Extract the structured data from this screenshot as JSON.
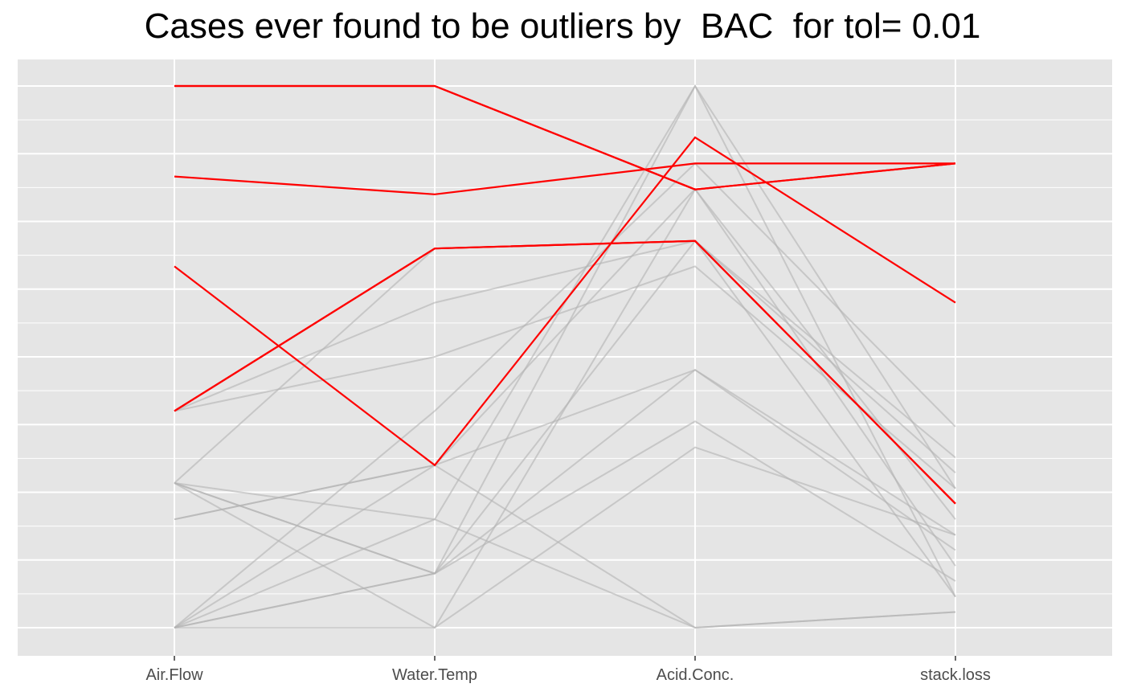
{
  "chart_data": {
    "type": "line",
    "title": "Cases ever found to be outliers by  BAC  for tol= 0.01",
    "xlabel": "",
    "ylabel": "",
    "categories": [
      "Air.Flow",
      "Water.Temp",
      "Acid.Conc.",
      "stack.loss"
    ],
    "ylim": [
      0,
      1
    ],
    "grid": true,
    "legend": "none",
    "colors": {
      "outlier": "#ff0000",
      "regular": "#b3b3b3",
      "panel_background": "#e5e5e5",
      "grid": "#ffffff",
      "tick_text": "#4d4d4d"
    },
    "series": [
      {
        "outlier": true,
        "values": [
          1.0,
          1.0,
          0.809,
          0.857
        ]
      },
      {
        "outlier": true,
        "values": [
          1.0,
          1.0,
          0.809,
          0.857
        ]
      },
      {
        "outlier": true,
        "values": [
          0.833,
          0.8,
          0.857,
          0.857
        ]
      },
      {
        "outlier": true,
        "values": [
          0.667,
          0.3,
          0.905,
          0.6
        ]
      },
      {
        "outlier": true,
        "values": [
          0.4,
          0.7,
          0.714,
          0.229
        ]
      },
      {
        "outlier": false,
        "values": [
          0.4,
          0.7,
          0.714,
          0.229
        ]
      },
      {
        "outlier": true,
        "values": [
          0.4,
          0.7,
          0.714,
          0.229
        ]
      },
      {
        "outlier": false,
        "values": [
          0.4,
          0.6,
          0.714,
          0.286
        ]
      },
      {
        "outlier": false,
        "values": [
          0.4,
          0.5,
          0.667,
          0.257
        ]
      },
      {
        "outlier": false,
        "values": [
          0.267,
          0.1,
          0.714,
          0.314
        ]
      },
      {
        "outlier": false,
        "values": [
          0.267,
          0.1,
          0.476,
          0.171
        ]
      },
      {
        "outlier": false,
        "values": [
          0.267,
          0.2,
          0.0,
          0.029
        ]
      },
      {
        "outlier": false,
        "values": [
          0.2,
          0.3,
          0.476,
          0.143
        ]
      },
      {
        "outlier": false,
        "values": [
          0.0,
          0.1,
          0.381,
          0.086
        ]
      },
      {
        "outlier": false,
        "values": [
          0.0,
          0.1,
          1.0,
          0.057
        ]
      },
      {
        "outlier": false,
        "values": [
          0.0,
          0.3,
          0.81,
          0.114
        ]
      },
      {
        "outlier": false,
        "values": [
          0.267,
          0.0,
          0.333,
          0.171
        ]
      },
      {
        "outlier": false,
        "values": [
          0.0,
          0.0,
          0.809,
          0.2
        ]
      },
      {
        "outlier": false,
        "values": [
          0.0,
          0.2,
          1.0,
          0.257
        ]
      },
      {
        "outlier": false,
        "values": [
          0.267,
          0.7,
          0.714,
          0.057
        ]
      },
      {
        "outlier": false,
        "values": [
          0.2,
          0.3,
          0.0,
          0.029
        ]
      },
      {
        "outlier": false,
        "values": [
          0.0,
          0.4,
          0.857,
          0.371
        ]
      }
    ]
  }
}
